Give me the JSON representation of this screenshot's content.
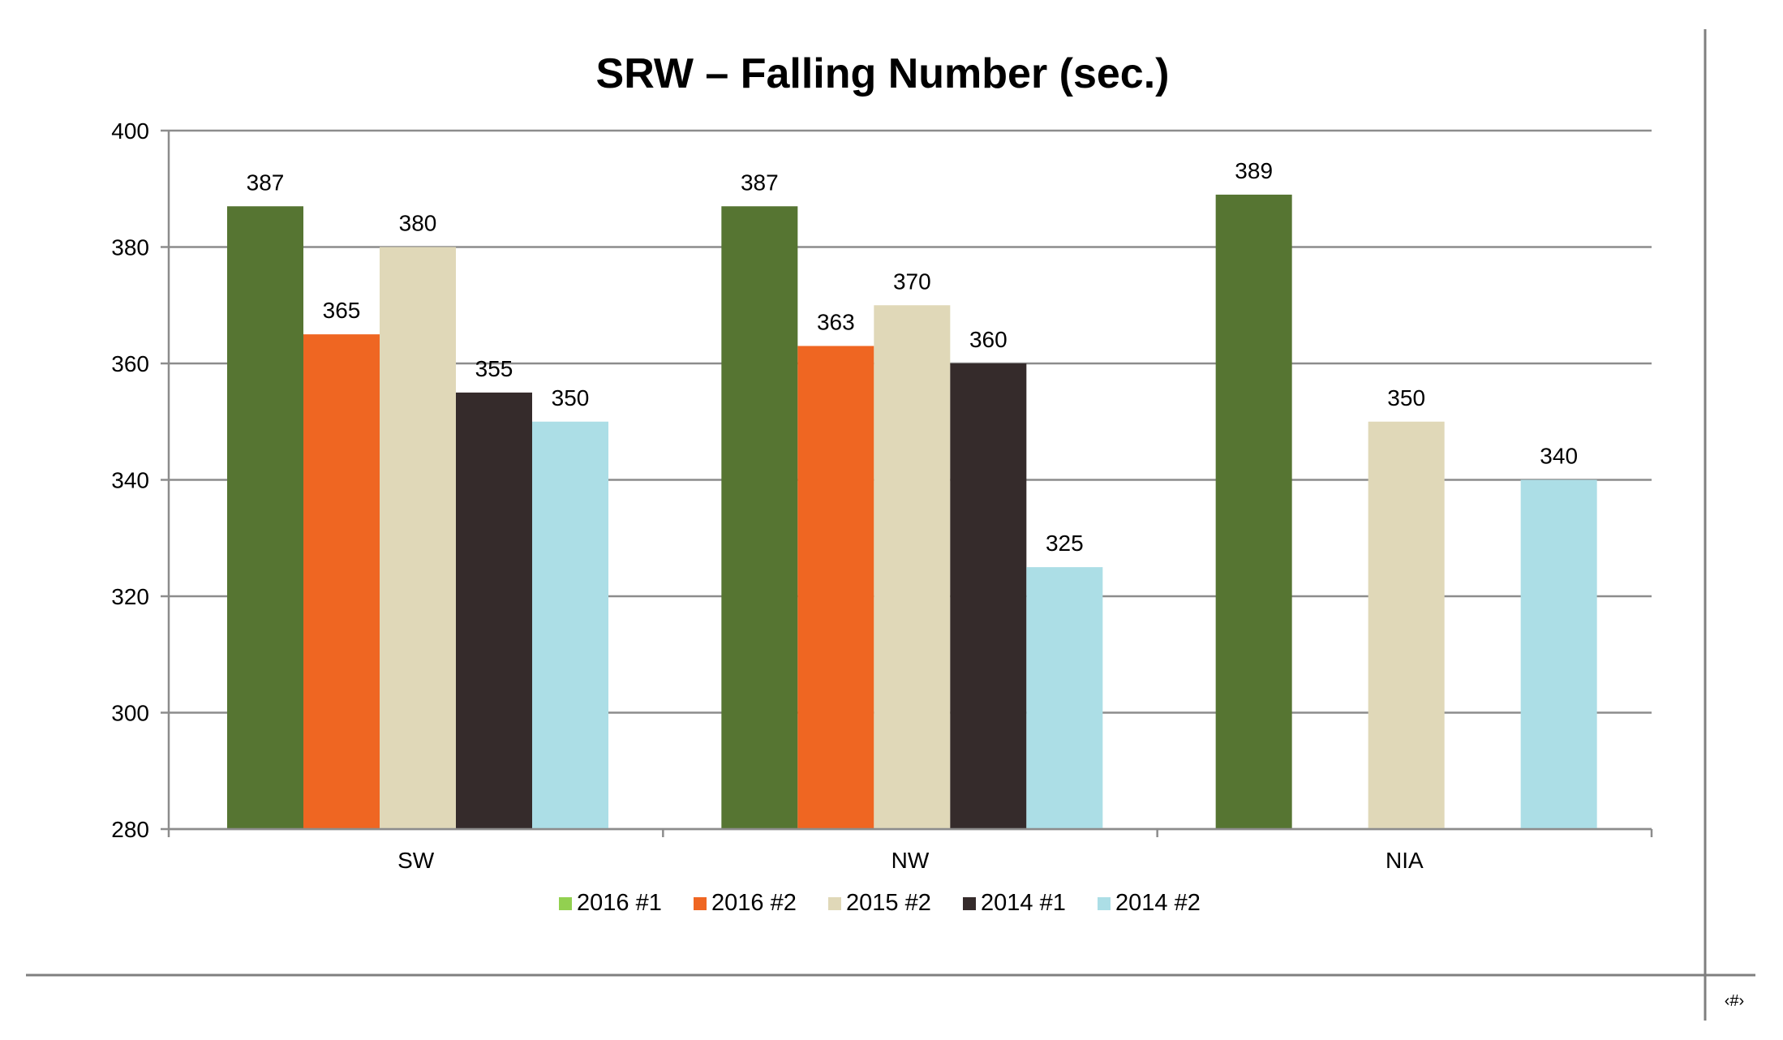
{
  "slide": {
    "page_marker": "‹#›"
  },
  "chart_data": {
    "type": "bar",
    "title": "SRW – Falling Number (sec.)",
    "xlabel": "",
    "ylabel": "",
    "categories": [
      "SW",
      "NW",
      "NIA"
    ],
    "ylim": [
      280,
      400
    ],
    "yticks": [
      280,
      300,
      320,
      340,
      360,
      380,
      400
    ],
    "grid": true,
    "legend_position": "bottom",
    "series": [
      {
        "name": "2016 #1",
        "color": "#567532",
        "legend_color": "#92d050",
        "values": [
          387,
          387,
          389
        ]
      },
      {
        "name": "2016 #2",
        "color": "#ef6622",
        "legend_color": "#ef6622",
        "values": [
          365,
          363,
          null
        ]
      },
      {
        "name": "2015 #2",
        "color": "#e0d8b8",
        "legend_color": "#e0d8b8",
        "values": [
          380,
          370,
          350
        ]
      },
      {
        "name": "2014 #1",
        "color": "#352b2b",
        "legend_color": "#352b2b",
        "values": [
          355,
          360,
          null
        ]
      },
      {
        "name": "2014 #2",
        "color": "#acdee6",
        "legend_color": "#acdee6",
        "values": [
          350,
          325,
          340
        ]
      }
    ]
  }
}
